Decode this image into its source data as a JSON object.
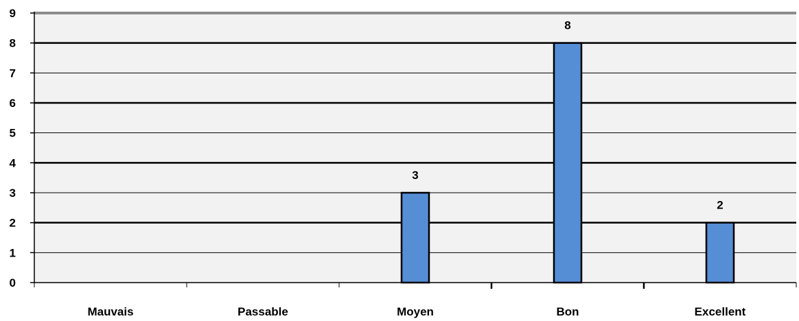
{
  "chart_data": {
    "type": "bar",
    "title": "",
    "xlabel": "",
    "ylabel": "",
    "categories": [
      "Mauvais",
      "Passable",
      "Moyen",
      "Bon",
      "Excellent"
    ],
    "values": [
      0,
      0,
      3,
      8,
      2
    ],
    "data_labels": [
      "",
      "",
      "3",
      "8",
      "2"
    ],
    "ylim": [
      0,
      9
    ],
    "yticks": [
      "0",
      "1",
      "2",
      "3",
      "4",
      "5",
      "6",
      "7",
      "8",
      "9"
    ],
    "grid": true,
    "legend": "none",
    "colors": {
      "bar_fill": "#558ed5",
      "bar_stroke": "#000000",
      "plot_background": "#f2f2f2",
      "frame_top": "#8c8c8c"
    }
  }
}
